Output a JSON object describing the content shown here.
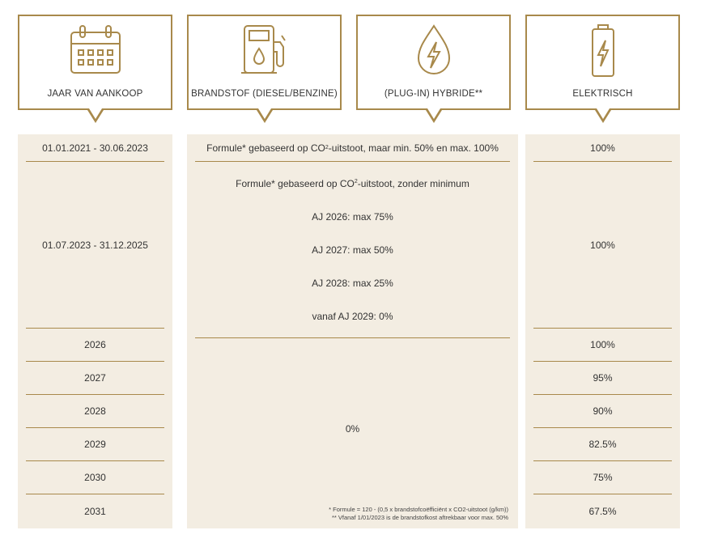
{
  "headers": {
    "year": "JAAR VAN AANKOOP",
    "fuel": "BRANDSTOF (DIESEL/BENZINE)",
    "hybrid": "(PLUG-IN) HYBRIDE**",
    "electric": "ELEKTRISCH"
  },
  "years": [
    "01.01.2021 - 30.06.2023",
    "01.07.2023 - 31.12.2025",
    "2026",
    "2027",
    "2028",
    "2029",
    "2030",
    "2031"
  ],
  "fuel_hybrid": {
    "row1_pre": "Formule* gebaseerd op CO",
    "row1_sup": "2",
    "row1_post": "-uitstoot, maar min. 50% en max. 100%",
    "row2_pre": "Formule* gebaseerd op CO",
    "row2_sup": "2",
    "row2_post": "-uitstoot, zonder minimum",
    "aj2026": "AJ 2026: max 75%",
    "aj2027": "AJ 2027: max 50%",
    "aj2028": "AJ 2028: max 25%",
    "aj2029": "vanaf AJ 2029: 0%",
    "zero": "0%",
    "footnote1": "* Formule = 120 - (0,5 x brandstofcoëfficiënt x CO2-uitstoot (g/km))",
    "footnote2": "** Vfanaf 1/01/2023 is de brandstofkost aftrekbaar voor max. 50%"
  },
  "electric": [
    "100%",
    "100%",
    "100%",
    "95%",
    "90%",
    "82.5%",
    "75%",
    "67.5%"
  ],
  "colors": {
    "gold": "#a8894b",
    "beige": "#f3ede2"
  }
}
